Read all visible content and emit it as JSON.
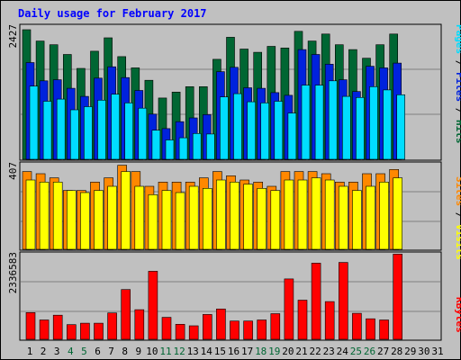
{
  "chart_data": {
    "type": "bar",
    "title": "Daily usage for February 2017",
    "categories": [
      "1",
      "2",
      "3",
      "4",
      "5",
      "6",
      "7",
      "8",
      "9",
      "10",
      "11",
      "12",
      "13",
      "14",
      "15",
      "16",
      "17",
      "18",
      "19",
      "20",
      "21",
      "22",
      "23",
      "24",
      "25",
      "26",
      "27",
      "28",
      "29",
      "30",
      "31"
    ],
    "weekend_days": [
      "4",
      "5",
      "11",
      "12",
      "18",
      "19",
      "25",
      "26"
    ],
    "panels": [
      {
        "id": "hits-files-pages",
        "ymax_label": "2427",
        "ylim": [
          0,
          2427
        ],
        "legend": [
          "Pages",
          "Files",
          "Hits"
        ],
        "series": [
          {
            "name": "Hits",
            "color": "#006633",
            "values": [
              2410,
              2200,
              2130,
              1950,
              1690,
              2010,
              2260,
              1910,
              1700,
              1470,
              1140,
              1250,
              1350,
              1350,
              1860,
              2270,
              2050,
              1990,
              2100,
              2070,
              2380,
              2200,
              2330,
              2130,
              2040,
              1880,
              2130,
              2330
            ]
          },
          {
            "name": "Files",
            "color": "#0022dd",
            "values": [
              1800,
              1460,
              1480,
              1320,
              1170,
              1510,
              1720,
              1520,
              1280,
              840,
              570,
              700,
              770,
              830,
              1630,
              1710,
              1330,
              1320,
              1240,
              1190,
              2040,
              1950,
              1770,
              1480,
              1260,
              1730,
              1700,
              1790
            ]
          },
          {
            "name": "Pages",
            "color": "#00ddff",
            "values": [
              1360,
              1080,
              1120,
              920,
              980,
              1100,
              1210,
              1050,
              950,
              540,
              360,
              400,
              480,
              470,
              1160,
              1220,
              1070,
              1050,
              1080,
              860,
              1380,
              1380,
              1460,
              1170,
              1150,
              1350,
              1290,
              1200
            ]
          }
        ]
      },
      {
        "id": "visits-sites",
        "ymax_label": "407",
        "ylim": [
          0,
          407
        ],
        "legend": [
          "Sites",
          "Visits"
        ],
        "series": [
          {
            "name": "Visits",
            "color": "#ff8800",
            "values": [
              370,
              360,
              340,
              280,
              280,
              320,
              340,
              400,
              370,
              300,
              320,
              320,
              320,
              340,
              370,
              350,
              330,
              320,
              300,
              370,
              370,
              370,
              360,
              320,
              320,
              360,
              360,
              380
            ]
          },
          {
            "name": "Sites",
            "color": "#ffff00",
            "values": [
              330,
              320,
              320,
              280,
              270,
              280,
              300,
              370,
              300,
              260,
              280,
              270,
              300,
              290,
              330,
              320,
              310,
              290,
              280,
              330,
              330,
              340,
              330,
              300,
              280,
              300,
              320,
              340
            ]
          }
        ]
      },
      {
        "id": "kbytes",
        "ymax_label": "2336583",
        "ylim": [
          0,
          2336583
        ],
        "legend": [
          "KBytes"
        ],
        "series": [
          {
            "name": "KBytes",
            "color": "#ff0000",
            "values": [
              730000,
              530000,
              660000,
              400000,
              440000,
              440000,
              720000,
              1360000,
              810000,
              1860000,
              600000,
              410000,
              370000,
              680000,
              830000,
              500000,
              500000,
              530000,
              700000,
              1650000,
              1070000,
              2080000,
              1030000,
              2100000,
              710000,
              560000,
              530000,
              2330000
            ]
          }
        ]
      }
    ]
  }
}
